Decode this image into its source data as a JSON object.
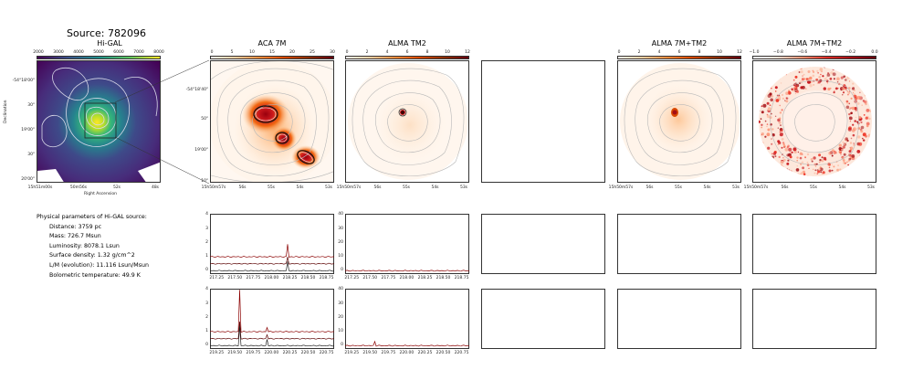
{
  "source_title": "Source: 782096",
  "panels": {
    "higal": {
      "title": "Hi-GAL",
      "colorbar_ticks": [
        "2000",
        "3000",
        "4000",
        "5000",
        "6000",
        "7000",
        "8000"
      ],
      "xticks": [
        "15h51m00s",
        "50m56s",
        "52s",
        "48s"
      ],
      "yticks": [
        "-54°18'00\"",
        "30\"",
        "19'00\"",
        "30\"",
        "20'00\""
      ],
      "xlabel": "Right Ascension",
      "ylabel": "Declination"
    },
    "aca": {
      "title": "ACA 7M",
      "colorbar_ticks": [
        "0",
        "5",
        "10",
        "15",
        "20",
        "25",
        "30"
      ],
      "xticks": [
        "15h50m57s",
        "56s",
        "55s",
        "54s",
        "53s"
      ],
      "yticks": [
        "-54°18'40\"",
        "50\"",
        "19'00\"",
        "10\""
      ]
    },
    "tm2": {
      "title": "ALMA TM2",
      "colorbar_ticks": [
        "0",
        "2",
        "4",
        "6",
        "8",
        "10",
        "12"
      ],
      "xticks": [
        "15h50m57s",
        "56s",
        "55s",
        "54s",
        "53s"
      ]
    },
    "combo": {
      "title": "ALMA 7M+TM2",
      "colorbar_ticks": [
        "0",
        "2",
        "4",
        "6",
        "8",
        "10",
        "12"
      ],
      "xticks": [
        "15h50m57s",
        "56s",
        "55s",
        "54s",
        "53s"
      ]
    },
    "combo2": {
      "title": "ALMA 7M+TM2",
      "colorbar_ticks": [
        "−1.0",
        "−0.8",
        "−0.6",
        "−0.4",
        "−0.2",
        "0.0"
      ],
      "xticks": [
        "15h50m57s",
        "56s",
        "55s",
        "54s",
        "53s"
      ]
    }
  },
  "params": {
    "heading": "Physical parameters of Hi-GAL source:",
    "lines": [
      "Distance: 3759 pc",
      "Mass: 726.7 Msun",
      "Luminosity: 8078.1 Lsun",
      "Surface density: 1.32 g/cm^2",
      "L/M (evolution): 11.116 Lsun/Msun",
      "Bolometric temperature: 49.9 K"
    ]
  },
  "chart_data": [
    {
      "type": "line",
      "panel": "spectrum-aca-row1",
      "x": [
        217.25,
        217.5,
        217.75,
        218.0,
        218.25,
        218.5,
        218.75
      ],
      "xticks": [
        "217.25",
        "217.50",
        "217.75",
        "218.00",
        "218.25",
        "218.50",
        "218.75"
      ],
      "yticks": [
        "0",
        "1",
        "2",
        "3",
        "4"
      ],
      "ylim": [
        0,
        4
      ],
      "baselines": [
        1.0,
        0.5,
        0.0
      ],
      "peaks": [
        {
          "x": 218.22,
          "y": 1.9
        }
      ],
      "color": "#8b0000"
    },
    {
      "type": "line",
      "panel": "spectrum-tm2-row1",
      "x": [
        217.25,
        217.5,
        217.75,
        218.0,
        218.25,
        218.5,
        218.75
      ],
      "xticks": [
        "217.25",
        "217.50",
        "217.75",
        "218.00",
        "218.25",
        "218.50",
        "218.75"
      ],
      "yticks": [
        "0",
        "10",
        "20",
        "30",
        "40"
      ],
      "ylim": [
        0,
        40
      ],
      "baselines": [
        0.0
      ],
      "peaks": [],
      "color": "#8b0000"
    },
    {
      "type": "line",
      "panel": "spectrum-aca-row2",
      "x": [
        219.25,
        219.5,
        219.75,
        220.0,
        220.25,
        220.5,
        220.75
      ],
      "xticks": [
        "219.25",
        "219.50",
        "219.75",
        "220.00",
        "220.25",
        "220.50",
        "220.75"
      ],
      "yticks": [
        "0",
        "1",
        "2",
        "3",
        "4"
      ],
      "ylim": [
        0,
        4
      ],
      "baselines": [
        1.0,
        0.5,
        0.0
      ],
      "peaks": [
        {
          "x": 219.56,
          "y": 4.0
        },
        {
          "x": 219.94,
          "y": 1.3
        },
        {
          "x": 220.4,
          "y": 3.2
        }
      ],
      "color": "#8b0000"
    },
    {
      "type": "line",
      "panel": "spectrum-tm2-row2",
      "x": [
        219.25,
        219.5,
        219.75,
        220.0,
        220.25,
        220.5,
        220.75
      ],
      "xticks": [
        "219.25",
        "219.50",
        "219.75",
        "220.00",
        "220.25",
        "220.50",
        "220.75"
      ],
      "yticks": [
        "0",
        "10",
        "20",
        "30",
        "40"
      ],
      "ylim": [
        0,
        40
      ],
      "baselines": [
        0.0
      ],
      "peaks": [
        {
          "x": 219.56,
          "y": 3
        },
        {
          "x": 220.4,
          "y": 3
        }
      ],
      "color": "#8b0000"
    }
  ]
}
